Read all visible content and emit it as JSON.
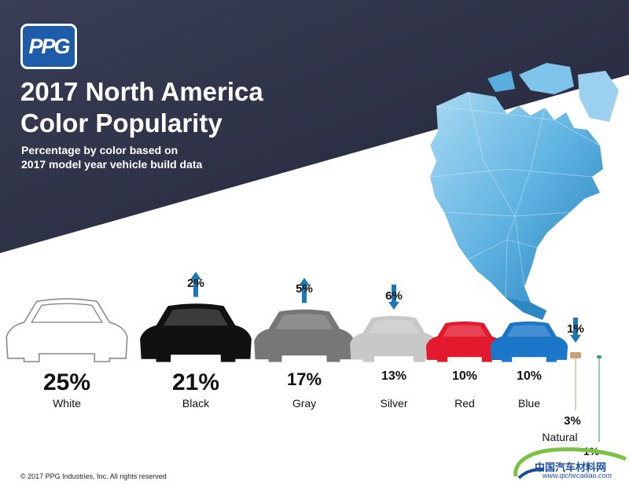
{
  "brand": {
    "logo_text": "PPG"
  },
  "header": {
    "title_line1": "2017 North America",
    "title_line2": "Color Popularity",
    "subtitle_line1": "Percentage by color based on",
    "subtitle_line2": "2017 model year vehicle build data"
  },
  "footer": {
    "copyright": "© 2017 PPG Industries, Inc. All rights reserved"
  },
  "watermark": {
    "site_name": "中国汽车材料网",
    "url": "www.qichecailiao.com"
  },
  "colors": {
    "banner": "#2b2f44",
    "map_light": "#9fd3ef",
    "map_dark": "#1f7ab6",
    "arrow": "#1e78b4"
  },
  "chart_data": {
    "type": "bar",
    "categories": [
      "White",
      "Black",
      "Gray",
      "Silver",
      "Red",
      "Blue",
      "Natural",
      ""
    ],
    "values": [
      25,
      21,
      17,
      13,
      10,
      10,
      3,
      1
    ],
    "value_labels": [
      "25%",
      "21%",
      "17%",
      "13%",
      "10%",
      "10%",
      "3%",
      "1%"
    ],
    "swatch_colors": [
      "#ffffff",
      "#111111",
      "#777777",
      "#c8c8c8",
      "#e3192d",
      "#1b76c8",
      "#c7a378",
      "#3aa055"
    ],
    "change": [
      null,
      {
        "dir": "up",
        "label": "2%"
      },
      {
        "dir": "up",
        "label": "5%"
      },
      {
        "dir": "down",
        "label": "6%"
      },
      null,
      null,
      {
        "dir": "down",
        "label": "1%"
      },
      null
    ],
    "title": "2017 North America Color Popularity",
    "subtitle": "Percentage by color based on 2017 model year vehicle build data"
  }
}
